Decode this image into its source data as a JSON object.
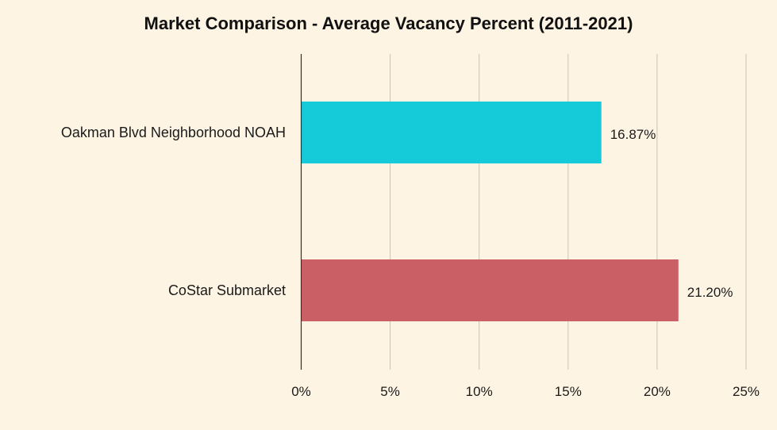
{
  "chart_data": {
    "type": "bar",
    "orientation": "horizontal",
    "title": "Market Comparison - Average Vacancy Percent (2011-2021)",
    "categories": [
      "Oakman Blvd Neighborhood NOAH",
      "CoStar Submarket"
    ],
    "values": [
      16.87,
      21.2
    ],
    "data_labels": [
      "16.87%",
      "21.20%"
    ],
    "colors": [
      "#16cbd9",
      "#cb5f66"
    ],
    "xlim": [
      0,
      25
    ],
    "xticks": [
      0,
      5,
      10,
      15,
      20,
      25
    ],
    "xtick_labels": [
      "0%",
      "5%",
      "10%",
      "15%",
      "20%",
      "25%"
    ],
    "xlabel": "",
    "ylabel": "",
    "grid": "vertical",
    "legend": "none"
  },
  "colors": {
    "background": "#fdf4e3",
    "grid": "#c9c3b8",
    "axis": "#333333"
  }
}
